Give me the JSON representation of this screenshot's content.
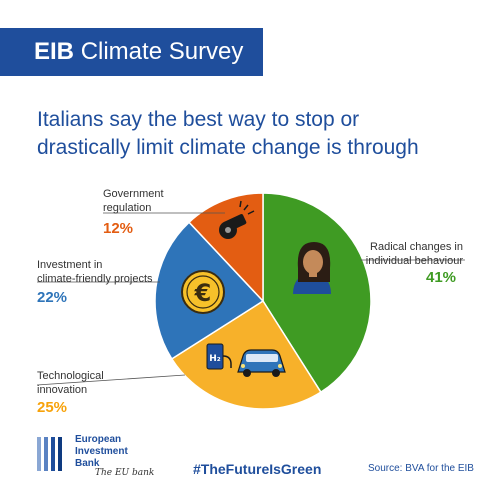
{
  "header": {
    "brand": "EIB",
    "title": "Climate Survey"
  },
  "headline": {
    "line1": "Italians say the best way to stop or",
    "line2": "drastically limit climate change is through"
  },
  "chart_data": {
    "type": "pie",
    "slices": [
      {
        "label_lines": [
          "Radical changes in",
          "individual behaviour"
        ],
        "value": 41,
        "value_label": "41%",
        "color": "#3f9b23",
        "icon": "person-icon"
      },
      {
        "label_lines": [
          "Technological",
          "innovation"
        ],
        "value": 25,
        "value_label": "25%",
        "color": "#f7b12a",
        "icon": "hydrogen-car-icon"
      },
      {
        "label_lines": [
          "Investment in",
          "climate-friendly projects"
        ],
        "value": 22,
        "value_label": "22%",
        "color": "#2e74b9",
        "icon": "euro-coin-icon"
      },
      {
        "label_lines": [
          "Government",
          "regulation"
        ],
        "value": 12,
        "value_label": "12%",
        "color": "#e35d12",
        "icon": "whistle-icon"
      }
    ],
    "pct_colors": [
      "#3f9b23",
      "#f7a20a",
      "#2e74b9",
      "#e35d12"
    ]
  },
  "footer": {
    "logo_lines": [
      "European",
      "Investment",
      "Bank"
    ],
    "signature": "The EU bank",
    "hashtag": "#TheFutureIsGreen",
    "source": "Source: BVA for the EIB"
  }
}
